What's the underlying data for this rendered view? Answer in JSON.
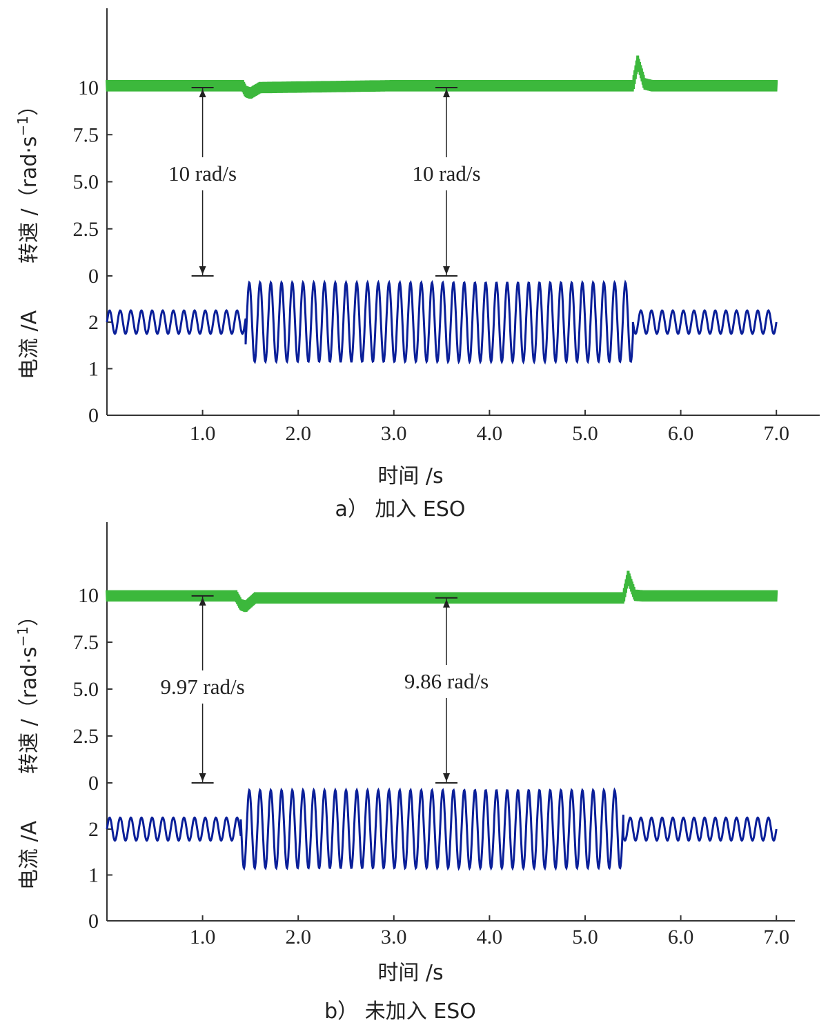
{
  "chart_data": [
    {
      "type": "line",
      "caption": "a）  加入 ESO",
      "xlabel": "时间 /s",
      "ylabel_speed": "转速 /（rad·s",
      "ylabel_speed_sup": "−1",
      "ylabel_current": "电流 /A",
      "xlim": [
        0,
        7.45
      ],
      "xticks": [
        "1.0",
        "2.0",
        "3.0",
        "4.0",
        "5.0",
        "6.0",
        "7.0"
      ],
      "xtick_values": [
        1,
        2,
        3,
        4,
        5,
        6,
        7
      ],
      "speed_yticks": [
        "10",
        "7.5",
        "5.0",
        "2.5",
        "0"
      ],
      "speed_ytick_values": [
        10,
        7.5,
        5,
        2.5,
        0
      ],
      "current_yticks": [
        "2",
        "1",
        "0"
      ],
      "current_ytick_values": [
        2,
        1,
        0
      ],
      "series": [
        {
          "name": "转速",
          "color": "#3cb83c",
          "x": [
            0,
            1.42,
            1.45,
            1.5,
            1.6,
            3.0,
            5.5,
            5.55,
            5.62,
            5.7,
            7.0
          ],
          "y": [
            10.1,
            10.1,
            9.8,
            9.7,
            10.0,
            10.1,
            10.1,
            11.4,
            10.2,
            10.1,
            10.1
          ],
          "ripple_amplitude": 0.3
        },
        {
          "name": "电流",
          "color": "#0a1f99",
          "segments": [
            {
              "x_start": 0,
              "x_end": 1.45,
              "center": 2.0,
              "amplitude": 0.25,
              "frequency_hz": 9
            },
            {
              "x_start": 1.45,
              "x_end": 5.5,
              "center": 2.0,
              "amplitude": 0.85,
              "frequency_hz": 8.9
            },
            {
              "x_start": 5.5,
              "x_end": 7.0,
              "center": 2.0,
              "amplitude": 0.25,
              "frequency_hz": 9
            }
          ]
        }
      ],
      "annotations": [
        {
          "text": "10 rad/s",
          "x": 1.0,
          "y_top": 10,
          "y_bottom": 0
        },
        {
          "text": "10 rad/s",
          "x": 3.55,
          "y_top": 10,
          "y_bottom": 0
        }
      ]
    },
    {
      "type": "line",
      "caption": "b）  未加入 ESO",
      "xlabel": "时间 /s",
      "ylabel_speed": "转速 /（rad·s",
      "ylabel_speed_sup": "−1",
      "ylabel_current": "电流 /A",
      "xlim": [
        0,
        7.2
      ],
      "xticks": [
        "1.0",
        "2.0",
        "3.0",
        "4.0",
        "5.0",
        "6.0",
        "7.0"
      ],
      "xtick_values": [
        1,
        2,
        3,
        4,
        5,
        6,
        7
      ],
      "speed_yticks": [
        "10",
        "7.5",
        "5.0",
        "2.5",
        "0"
      ],
      "speed_ytick_values": [
        10,
        7.5,
        5,
        2.5,
        0
      ],
      "current_yticks": [
        "2",
        "1",
        "0"
      ],
      "current_ytick_values": [
        2,
        1,
        0
      ],
      "series": [
        {
          "name": "转速",
          "color": "#3cb83c",
          "x": [
            0,
            1.35,
            1.4,
            1.45,
            1.55,
            3.0,
            5.4,
            5.45,
            5.52,
            5.6,
            7.0
          ],
          "y": [
            9.97,
            9.97,
            9.5,
            9.4,
            9.86,
            9.86,
            9.86,
            11.0,
            10.0,
            9.97,
            9.97
          ],
          "ripple_amplitude": 0.3
        },
        {
          "name": "电流",
          "color": "#0a1f99",
          "segments": [
            {
              "x_start": 0,
              "x_end": 1.4,
              "center": 2.0,
              "amplitude": 0.25,
              "frequency_hz": 9
            },
            {
              "x_start": 1.4,
              "x_end": 5.4,
              "center": 2.0,
              "amplitude": 0.85,
              "frequency_hz": 8.9
            },
            {
              "x_start": 5.4,
              "x_end": 7.0,
              "center": 2.0,
              "amplitude": 0.25,
              "frequency_hz": 9
            }
          ]
        }
      ],
      "annotations": [
        {
          "text": "9.97 rad/s",
          "x": 1.0,
          "y_top": 9.97,
          "y_bottom": 0
        },
        {
          "text": "9.86 rad/s",
          "x": 3.55,
          "y_top": 9.86,
          "y_bottom": 0
        }
      ]
    }
  ]
}
